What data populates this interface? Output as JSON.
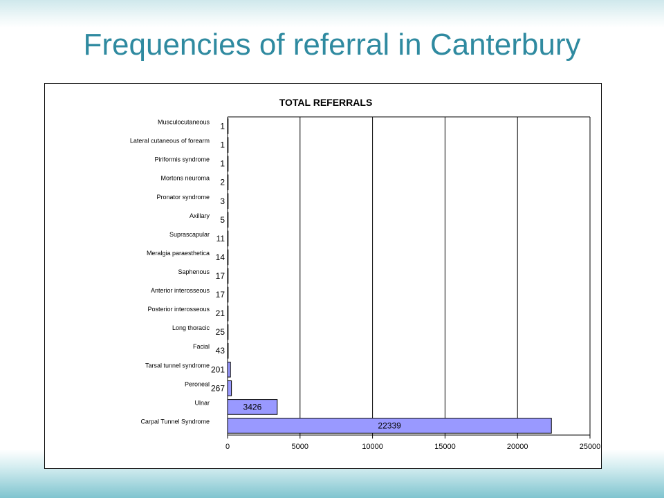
{
  "slide": {
    "title": "Frequencies of referral in Canterbury"
  },
  "chart_data": {
    "type": "bar",
    "orientation": "horizontal",
    "title": "TOTAL REFERRALS",
    "categories": [
      "Musculocutaneous",
      "Lateral cutaneous of forearm",
      "Piriformis syndrome",
      "Mortons neuroma",
      "Pronator syndrome",
      "Axillary",
      "Suprascapular",
      "Meralgia paraesthetica",
      "Saphenous",
      "Anterior interosseous",
      "Posterior interosseous",
      "Long thoracic",
      "Facial",
      "Tarsal tunnel syndrome",
      "Peroneal",
      "Ulnar",
      "Carpal Tunnel Syndrome"
    ],
    "values": [
      1,
      1,
      1,
      2,
      3,
      5,
      11,
      14,
      17,
      17,
      21,
      25,
      43,
      201,
      267,
      3426,
      22339
    ],
    "value_labels": [
      "1",
      "1",
      "1",
      "2",
      "3",
      "5",
      "11",
      "14",
      "17",
      "17",
      "21",
      "25",
      "43",
      "201",
      "267",
      "3426",
      "22339"
    ],
    "xlim": [
      0,
      25000
    ],
    "xticks": [
      0,
      5000,
      10000,
      15000,
      20000,
      25000
    ],
    "xtick_labels": [
      "0",
      "5000",
      "10000",
      "15000",
      "20000",
      "25000"
    ],
    "grid": "vertical",
    "legend": "none",
    "bar_color": "#9999ff",
    "bar_stroke": "#000000",
    "grid_color": "#000000"
  }
}
